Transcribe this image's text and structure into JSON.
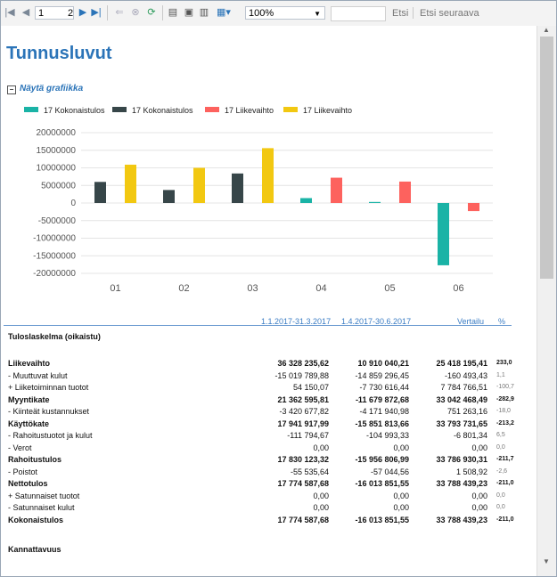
{
  "toolbar": {
    "page_current": "1",
    "page_total": "2",
    "zoom": "100%",
    "find_label": "Etsi",
    "find_next_label": "Etsi seuraava"
  },
  "report": {
    "title": "Tunnusluvut",
    "toggle_label": "Näytä grafiikka"
  },
  "chart_data": {
    "type": "bar",
    "categories": [
      "01",
      "02",
      "03",
      "04",
      "05",
      "06"
    ],
    "series": [
      {
        "name": "17 Kokonaistulos",
        "color": "#1ab3a6",
        "values": [
          0,
          0,
          0,
          1400000,
          300000,
          -17700000
        ]
      },
      {
        "name": "17 Kokonaistulos",
        "color": "#374649",
        "values": [
          6000000,
          3700000,
          8400000,
          0,
          0,
          0
        ]
      },
      {
        "name": "17 Liikevaihto",
        "color": "#fd625e",
        "values": [
          0,
          0,
          0,
          7200000,
          6100000,
          -2300000
        ]
      },
      {
        "name": "17 Liikevaihto",
        "color": "#f2c811",
        "values": [
          10900000,
          10000000,
          15600000,
          0,
          0,
          0
        ]
      }
    ],
    "yticks": [
      "20000000",
      "15000000",
      "10000000",
      "5000000",
      "0",
      "-5000000",
      "-10000000",
      "-15000000",
      "-20000000"
    ],
    "ylim": [
      -20000000,
      20000000
    ],
    "grid": true,
    "legend": "top-left"
  },
  "table": {
    "col1": "1.1.2017-31.3.2017",
    "col2": "1.4.2017-30.6.2017",
    "col3": "Vertailu",
    "col4": "%",
    "section_title": "Tuloslaskelma (oikaistu)",
    "rows": [
      {
        "label": "Liikevaihto",
        "v1": "36 328 235,62",
        "v2": "10 910 040,21",
        "v3": "25 418 195,41",
        "pct": "233,0"
      },
      {
        "label": "- Muuttuvat kulut",
        "v1": "-15 019 789,88",
        "v2": "-14 859 296,45",
        "v3": "-160 493,43",
        "pct": "1,1"
      },
      {
        "label": "+ Liiketoiminnan tuotot",
        "v1": "54 150,07",
        "v2": "-7 730 616,44",
        "v3": "7 784 766,51",
        "pct": "-100,7"
      },
      {
        "label": "Myyntikate",
        "v1": "21 362 595,81",
        "v2": "-11 679 872,68",
        "v3": "33 042 468,49",
        "pct": "-282,9"
      },
      {
        "label": "- Kiinteät kustannukset",
        "v1": "-3 420 677,82",
        "v2": "-4 171 940,98",
        "v3": "751 263,16",
        "pct": "-18,0"
      },
      {
        "label": "Käyttökate",
        "v1": "17 941 917,99",
        "v2": "-15 851 813,66",
        "v3": "33 793 731,65",
        "pct": "-213,2"
      },
      {
        "label": "- Rahoitustuotot ja kulut",
        "v1": "-111 794,67",
        "v2": "-104 993,33",
        "v3": "-6 801,34",
        "pct": "6,5"
      },
      {
        "label": "- Verot",
        "v1": "0,00",
        "v2": "0,00",
        "v3": "0,00",
        "pct": "0,0"
      },
      {
        "label": "Rahoitustulos",
        "v1": "17 830 123,32",
        "v2": "-15 956 806,99",
        "v3": "33 786 930,31",
        "pct": "-211,7"
      },
      {
        "label": "- Poistot",
        "v1": "-55 535,64",
        "v2": "-57 044,56",
        "v3": "1 508,92",
        "pct": "-2,6"
      },
      {
        "label": "Nettotulos",
        "v1": "17 774 587,68",
        "v2": "-16 013 851,55",
        "v3": "33 788 439,23",
        "pct": "-211,0"
      },
      {
        "label": "+ Satunnaiset tuotot",
        "v1": "0,00",
        "v2": "0,00",
        "v3": "0,00",
        "pct": "0,0"
      },
      {
        "label": "- Satunnaiset kulut",
        "v1": "0,00",
        "v2": "0,00",
        "v3": "0,00",
        "pct": "0,0"
      },
      {
        "label": "Kokonaistulos",
        "v1": "17 774 587,68",
        "v2": "-16 013 851,55",
        "v3": "33 788 439,23",
        "pct": "-211,0"
      }
    ],
    "footer_title": "Kannattavuus"
  }
}
